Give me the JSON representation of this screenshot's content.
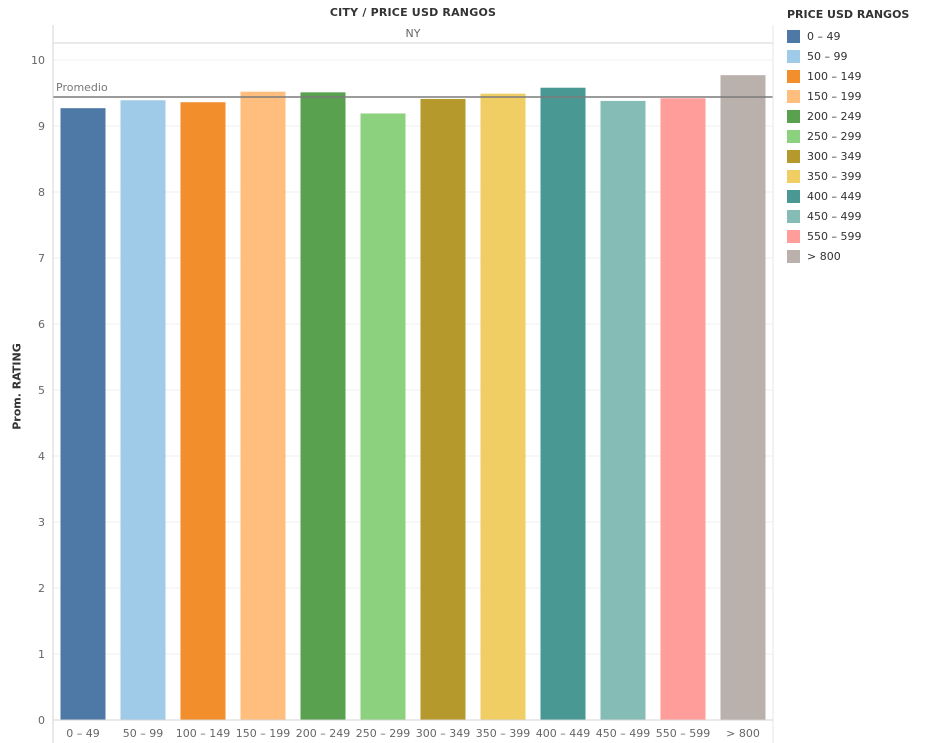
{
  "header": {
    "title": "CITY  /  PRICE USD RANGOS",
    "pane_label": "NY"
  },
  "legend": {
    "title": "PRICE USD RANGOS",
    "items": [
      {
        "label": "0 – 49",
        "color": "#4e79a7"
      },
      {
        "label": "50 – 99",
        "color": "#a0cbe8"
      },
      {
        "label": "100 – 149",
        "color": "#f28e2b"
      },
      {
        "label": "150 – 199",
        "color": "#ffbe7d"
      },
      {
        "label": "200 – 249",
        "color": "#59a14f"
      },
      {
        "label": "250 – 299",
        "color": "#8cd17d"
      },
      {
        "label": "300 – 349",
        "color": "#b6992d"
      },
      {
        "label": "350 – 399",
        "color": "#f1ce63"
      },
      {
        "label": "400 – 449",
        "color": "#499894"
      },
      {
        "label": "450 – 499",
        "color": "#86bcb6"
      },
      {
        "label": "550 – 599",
        "color": "#ff9d9a"
      },
      {
        "label": "> 800",
        "color": "#bab0ac"
      }
    ]
  },
  "chart_data": {
    "type": "bar",
    "title": "CITY  /  PRICE USD RANGOS",
    "pane": "NY",
    "ylabel": "Prom. RATING",
    "xlabel": "",
    "ylim": [
      0,
      10
    ],
    "yticks": [
      0,
      1,
      2,
      3,
      4,
      5,
      6,
      7,
      8,
      9,
      10
    ],
    "categories": [
      "0 – 49",
      "50 – 99",
      "100 – 149",
      "150 – 199",
      "200 – 249",
      "250 – 299",
      "300 – 349",
      "350 – 399",
      "400 – 449",
      "450 – 499",
      "550 – 599",
      "> 800"
    ],
    "values": [
      9.27,
      9.39,
      9.36,
      9.52,
      9.51,
      9.19,
      9.41,
      9.49,
      9.58,
      9.38,
      9.42,
      9.77
    ],
    "colors": [
      "#4e79a7",
      "#a0cbe8",
      "#f28e2b",
      "#ffbe7d",
      "#59a14f",
      "#8cd17d",
      "#b6992d",
      "#f1ce63",
      "#499894",
      "#86bcb6",
      "#ff9d9a",
      "#bab0ac"
    ],
    "reference_line": {
      "label": "Promedio",
      "value": 9.44
    },
    "grid": true,
    "legend_position": "right"
  }
}
